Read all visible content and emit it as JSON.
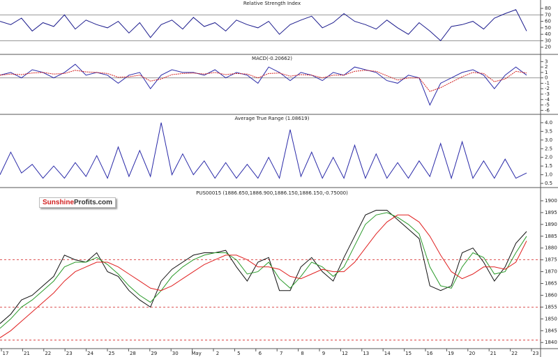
{
  "chart_data": [
    {
      "type": "line",
      "title": "Relative Strength Index",
      "ylim": [
        10,
        93
      ],
      "yticks": [
        80,
        70,
        60,
        50,
        40,
        30,
        20
      ],
      "hlines": [
        70,
        30
      ],
      "hline_color": "#888",
      "series": [
        {
          "color": "#1a1a8c",
          "values": [
            60,
            55,
            65,
            45,
            58,
            52,
            70,
            48,
            62,
            55,
            50,
            60,
            42,
            58,
            35,
            55,
            62,
            48,
            66,
            52,
            58,
            45,
            62,
            55,
            50,
            60,
            40,
            55,
            62,
            68,
            50,
            58,
            72,
            60,
            55,
            48,
            62,
            50,
            40,
            58,
            45,
            30,
            52,
            55,
            60,
            48,
            65,
            72,
            78,
            45
          ]
        }
      ]
    },
    {
      "type": "line",
      "title": "MACD(-0.20662)",
      "ylim": [
        -6.6,
        4.2
      ],
      "yticks": [
        3,
        2,
        1,
        0,
        -1,
        -2,
        -3,
        -4,
        -5,
        -6
      ],
      "hlines": [
        0
      ],
      "hline_color": "#888",
      "series": [
        {
          "color": "#2a2aa8",
          "values": [
            0.5,
            1,
            0,
            1.5,
            1,
            0,
            1,
            2.5,
            0.5,
            1,
            0.5,
            -1,
            0.5,
            1,
            -2,
            0.5,
            1.5,
            1,
            1,
            0.5,
            1.5,
            0,
            1,
            0.5,
            -1,
            2,
            1,
            -0.5,
            1,
            0.5,
            -0.5,
            1,
            0.5,
            2,
            1.5,
            1,
            -0.5,
            -1,
            0.5,
            0,
            -5,
            -1,
            0,
            1,
            1.5,
            0.5,
            -2,
            0.5,
            2,
            0.5
          ]
        },
        {
          "color": "#d21f1f",
          "values": [
            0.5,
            0.7,
            0.6,
            0.9,
            1,
            0.7,
            0.8,
            1.4,
            1.1,
            1,
            0.8,
            0.1,
            0.2,
            0.5,
            -0.6,
            -0.2,
            0.6,
            0.8,
            0.9,
            0.7,
            1,
            0.6,
            0.8,
            0.7,
            0,
            0.8,
            0.9,
            0.3,
            0.6,
            0.5,
            0,
            0.5,
            0.5,
            1.2,
            1.4,
            1.2,
            0.4,
            -0.4,
            0,
            0,
            -2.5,
            -1.8,
            -0.8,
            0.2,
            1,
            0.8,
            -0.7,
            -0.2,
            1.2,
            0.9
          ]
        }
      ]
    },
    {
      "type": "line",
      "title": "Average True Range (1.08619)",
      "ylim": [
        0.3,
        4.44
      ],
      "yticks": [
        {
          "value": 4,
          "label": "4.0"
        },
        3.5,
        {
          "value": 3,
          "label": "3.0"
        },
        2.5,
        {
          "value": 2,
          "label": "2.0"
        },
        1.5,
        {
          "value": 1,
          "label": "1.0"
        },
        0.5
      ],
      "series": [
        {
          "color": "#2a2aa8",
          "values": [
            1.0,
            2.3,
            1.1,
            1.6,
            0.8,
            1.5,
            0.8,
            1.7,
            0.9,
            2.1,
            0.8,
            2.6,
            0.9,
            2.4,
            0.9,
            4.0,
            1.0,
            2.2,
            1.0,
            1.8,
            0.8,
            1.7,
            0.8,
            1.6,
            0.8,
            2.0,
            0.8,
            3.6,
            0.9,
            2.3,
            0.8,
            2.0,
            0.8,
            2.7,
            0.8,
            2.2,
            0.8,
            1.7,
            0.8,
            1.8,
            0.9,
            2.8,
            0.8,
            2.9,
            0.8,
            1.8,
            0.8,
            1.9,
            0.8,
            1.1
          ]
        }
      ]
    },
    {
      "type": "line",
      "title": "PUS00015 (1886.650,1886.900,1886.150,1886.150,-0.75000)",
      "ylim": [
        1837.7,
        1905.3
      ],
      "yticks": [
        1900,
        1895,
        1890,
        1885,
        1880,
        1875,
        1870,
        1865,
        1860,
        1855,
        1850,
        1845,
        1840
      ],
      "hlines": [
        1875,
        1855,
        1841
      ],
      "hline_color": "#d21f1f",
      "hline_dashed": true,
      "series": [
        {
          "color": "#111",
          "values": [
            1848,
            1852,
            1858,
            1860,
            1864,
            1868,
            1877,
            1875,
            1874,
            1878,
            1870,
            1868,
            1862,
            1858,
            1855,
            1866,
            1871,
            1874,
            1877,
            1878,
            1878,
            1879,
            1872,
            1866,
            1874,
            1876,
            1862,
            1862,
            1872,
            1876,
            1870,
            1866,
            1876,
            1885,
            1894,
            1896,
            1896,
            1892,
            1888,
            1884,
            1864,
            1862,
            1864,
            1878,
            1880,
            1874,
            1866,
            1872,
            1882,
            1887
          ]
        },
        {
          "color": "#2a9a2a",
          "values": [
            1846,
            1850,
            1855,
            1858,
            1862,
            1866,
            1872,
            1874,
            1874,
            1876,
            1873,
            1869,
            1864,
            1860,
            1857,
            1862,
            1868,
            1872,
            1875,
            1877,
            1878,
            1878,
            1875,
            1869,
            1870,
            1874,
            1867,
            1863,
            1868,
            1874,
            1872,
            1868,
            1872,
            1881,
            1890,
            1894,
            1895,
            1893,
            1890,
            1886,
            1872,
            1864,
            1863,
            1872,
            1878,
            1876,
            1869,
            1870,
            1878,
            1885
          ]
        },
        {
          "color": "#e02020",
          "values": [
            1842,
            1845,
            1849,
            1853,
            1857,
            1861,
            1866,
            1870,
            1872,
            1874,
            1874,
            1872,
            1869,
            1866,
            1863,
            1862,
            1864,
            1867,
            1870,
            1873,
            1875,
            1877,
            1877,
            1875,
            1872,
            1872,
            1871,
            1868,
            1867,
            1869,
            1871,
            1870,
            1870,
            1874,
            1880,
            1886,
            1891,
            1894,
            1894,
            1891,
            1885,
            1877,
            1870,
            1867,
            1869,
            1872,
            1872,
            1871,
            1874,
            1883
          ]
        }
      ]
    }
  ],
  "x_axis": {
    "categories": [
      "17",
      "21",
      "22",
      "23",
      "24",
      "25",
      "28",
      "29",
      "30",
      "May",
      "2",
      "5",
      "6",
      "7",
      "8",
      "9",
      "12",
      "13",
      "14",
      "15",
      "16",
      "19",
      "20",
      "21",
      "22",
      "23"
    ]
  },
  "logo": {
    "brand": "Sunshine",
    "suffix": "Profits.com"
  }
}
